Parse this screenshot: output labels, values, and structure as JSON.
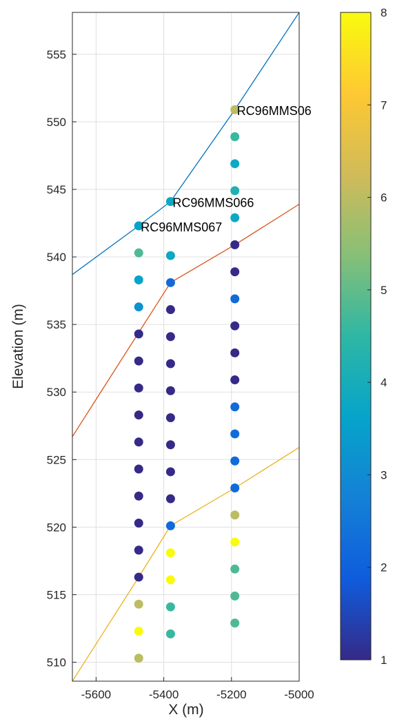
{
  "chart_data": {
    "type": "scatter",
    "xlabel": "X (m)",
    "ylabel": "Elevation (m)",
    "xlim": [
      -5670,
      -5000
    ],
    "ylim": [
      508.6,
      558.1
    ],
    "xticks": [
      -5600,
      -5400,
      -5200,
      -5000
    ],
    "yticks": [
      510,
      515,
      520,
      525,
      530,
      535,
      540,
      545,
      550,
      555
    ],
    "grid": true,
    "colorbar": {
      "colormap": "parula",
      "range": [
        1,
        8
      ],
      "ticks": [
        1,
        2,
        3,
        4,
        5,
        6,
        7,
        8
      ],
      "colors": [
        "#352a87",
        "#0f5cdd",
        "#1481d6",
        "#06a4ca",
        "#2eb7a4",
        "#87bf77",
        "#d1bb59",
        "#fec832",
        "#f9fb0e"
      ]
    },
    "lines": [
      {
        "color": "#0072bd",
        "points": [
          [
            -5670,
            538.7
          ],
          [
            -5474,
            542.3
          ],
          [
            -5380,
            544.1
          ],
          [
            -5190,
            550.9
          ],
          [
            -5000,
            558.1
          ]
        ]
      },
      {
        "color": "#d95319",
        "points": [
          [
            -5670,
            526.7
          ],
          [
            -5474,
            534.4
          ],
          [
            -5380,
            538.1
          ],
          [
            -5190,
            540.9
          ],
          [
            -5000,
            543.9
          ]
        ]
      },
      {
        "color": "#edb120",
        "points": [
          [
            -5670,
            508.6
          ],
          [
            -5474,
            516.3
          ],
          [
            -5380,
            520.1
          ],
          [
            -5190,
            522.9
          ],
          [
            -5000,
            525.9
          ]
        ]
      }
    ],
    "holes": [
      {
        "label": "RC96MMS067",
        "x": -5474,
        "points": [
          [
            542.3,
            3.6
          ],
          [
            540.3,
            4.8
          ],
          [
            538.3,
            3.6
          ],
          [
            536.3,
            3.2
          ],
          [
            534.3,
            1
          ],
          [
            532.3,
            1
          ],
          [
            530.3,
            1
          ],
          [
            528.3,
            1
          ],
          [
            526.3,
            1
          ],
          [
            524.3,
            1
          ],
          [
            522.3,
            1
          ],
          [
            520.3,
            1
          ],
          [
            518.3,
            1
          ],
          [
            516.3,
            1
          ],
          [
            514.3,
            6
          ],
          [
            512.3,
            8
          ],
          [
            510.3,
            6
          ]
        ]
      },
      {
        "label": "RC96MMS066",
        "x": -5380,
        "points": [
          [
            544.1,
            3.8
          ],
          [
            540.1,
            3.8
          ],
          [
            538.1,
            2.2
          ],
          [
            536.1,
            1
          ],
          [
            534.1,
            1
          ],
          [
            532.1,
            1
          ],
          [
            530.1,
            1
          ],
          [
            528.1,
            1
          ],
          [
            526.1,
            1
          ],
          [
            524.1,
            1
          ],
          [
            522.1,
            1
          ],
          [
            520.1,
            2.2
          ],
          [
            518.1,
            8
          ],
          [
            516.1,
            8
          ],
          [
            514.1,
            4.6
          ],
          [
            512.1,
            4.6
          ]
        ]
      },
      {
        "label": "RC96MMS06",
        "x": -5190,
        "points": [
          [
            550.9,
            6
          ],
          [
            548.9,
            4.6
          ],
          [
            546.9,
            3.8
          ],
          [
            544.9,
            4.2
          ],
          [
            542.9,
            3.8
          ],
          [
            540.9,
            1
          ],
          [
            538.9,
            1
          ],
          [
            536.9,
            2.2
          ],
          [
            534.9,
            1
          ],
          [
            532.9,
            1
          ],
          [
            530.9,
            1
          ],
          [
            528.9,
            2.2
          ],
          [
            526.9,
            2.2
          ],
          [
            524.9,
            2.2
          ],
          [
            522.9,
            2.2
          ],
          [
            520.9,
            6
          ],
          [
            518.9,
            8
          ],
          [
            516.9,
            4.8
          ],
          [
            514.9,
            4.8
          ],
          [
            512.9,
            4.8
          ]
        ]
      }
    ]
  }
}
